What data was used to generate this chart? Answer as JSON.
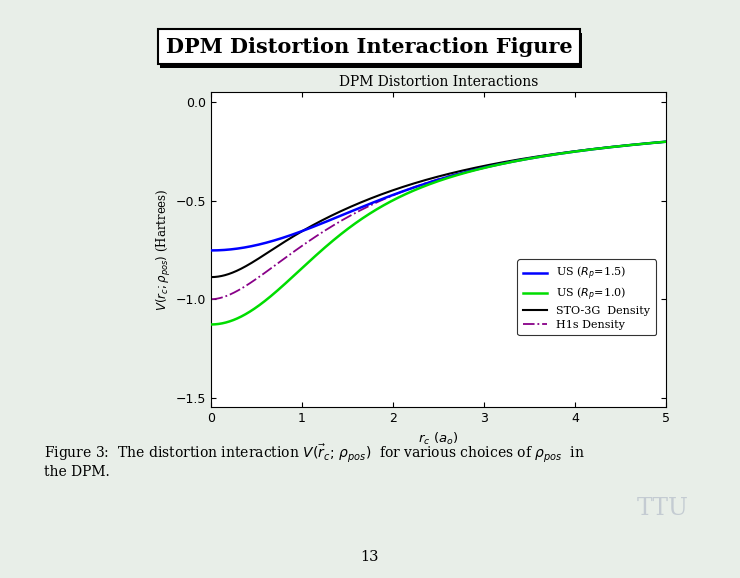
{
  "bg_color": "#e8eee8",
  "slide_title": "DPM Distortion Interaction Figure",
  "plot_title": "DPM Distortion Interactions",
  "xlabel": "$r_c$ $(a_o)$",
  "ylabel": "$V(r_c;\\rho_{pos})$ (Hartrees)",
  "xlim": [
    0,
    5
  ],
  "ylim": [
    -1.55,
    0.05
  ],
  "yticks": [
    0.0,
    -0.5,
    -1.0,
    -1.5
  ],
  "xticks": [
    0,
    1,
    2,
    3,
    4,
    5
  ],
  "line_colors": {
    "US_1p5": "#0000ff",
    "US_1p0": "#00dd00",
    "STO3G": "#000000",
    "H1s": "#880088"
  },
  "legend_labels": {
    "US_1p5": "US ($R_p$=1.5)",
    "US_1p0": "US ($R_p$=1.0)",
    "STO3G": "STO-3G  Density",
    "H1s": "H1s Density"
  },
  "ttu_text": "TTU",
  "page_number": "13"
}
